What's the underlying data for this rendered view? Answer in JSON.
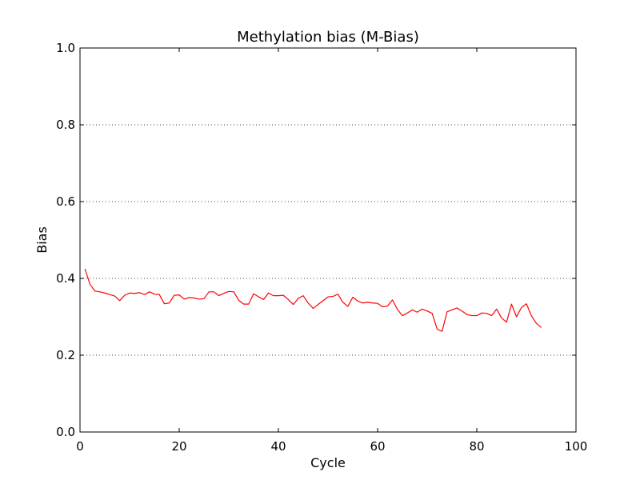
{
  "chart_data": {
    "type": "line",
    "title": "Methylation bias (M-Bias)",
    "xlabel": "Cycle",
    "ylabel": "Bias",
    "xlim": [
      0,
      100
    ],
    "ylim": [
      0.0,
      1.0
    ],
    "xticks": [
      "0",
      "20",
      "40",
      "60",
      "80",
      "100"
    ],
    "yticks": [
      "0.0",
      "0.2",
      "0.4",
      "0.6",
      "0.8",
      "1.0"
    ],
    "ygrid": true,
    "line_color": "#ff0000",
    "x": [
      1,
      2,
      3,
      4,
      5,
      6,
      7,
      8,
      9,
      10,
      11,
      12,
      13,
      14,
      15,
      16,
      17,
      18,
      19,
      20,
      21,
      22,
      23,
      24,
      25,
      26,
      27,
      28,
      29,
      30,
      31,
      32,
      33,
      34,
      35,
      36,
      37,
      38,
      39,
      40,
      41,
      42,
      43,
      44,
      45,
      46,
      47,
      48,
      49,
      50,
      51,
      52,
      53,
      54,
      55,
      56,
      57,
      58,
      59,
      60,
      61,
      62,
      63,
      64,
      65,
      66,
      67,
      68,
      69,
      70,
      71,
      72,
      73,
      74,
      75,
      76,
      77,
      78,
      79,
      80,
      81,
      82,
      83,
      84,
      85,
      86,
      87,
      88,
      89,
      90,
      91,
      92,
      93
    ],
    "y": [
      0.425,
      0.385,
      0.367,
      0.365,
      0.362,
      0.358,
      0.354,
      0.342,
      0.356,
      0.362,
      0.361,
      0.363,
      0.358,
      0.365,
      0.359,
      0.358,
      0.334,
      0.336,
      0.356,
      0.357,
      0.346,
      0.35,
      0.349,
      0.346,
      0.347,
      0.365,
      0.365,
      0.355,
      0.361,
      0.366,
      0.365,
      0.343,
      0.333,
      0.333,
      0.36,
      0.352,
      0.345,
      0.362,
      0.355,
      0.355,
      0.356,
      0.345,
      0.332,
      0.348,
      0.355,
      0.336,
      0.322,
      0.332,
      0.342,
      0.352,
      0.353,
      0.359,
      0.338,
      0.327,
      0.351,
      0.341,
      0.336,
      0.338,
      0.336,
      0.335,
      0.326,
      0.328,
      0.344,
      0.319,
      0.303,
      0.31,
      0.318,
      0.312,
      0.32,
      0.315,
      0.309,
      0.268,
      0.262,
      0.313,
      0.318,
      0.323,
      0.315,
      0.306,
      0.303,
      0.303,
      0.31,
      0.309,
      0.303,
      0.32,
      0.297,
      0.286,
      0.333,
      0.3,
      0.324,
      0.334,
      0.303,
      0.283,
      0.272
    ]
  }
}
